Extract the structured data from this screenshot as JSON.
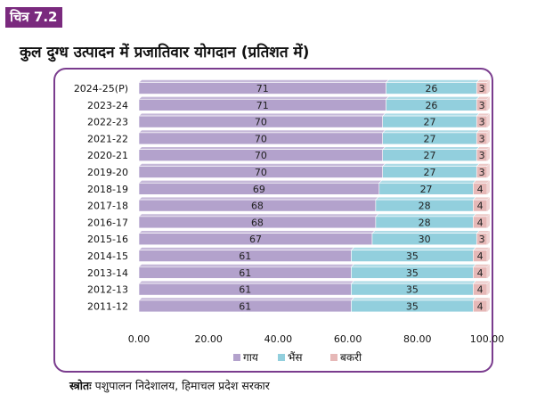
{
  "figure_label": "चित्र 7.2",
  "title": "कुल दुग्ध उत्पादन में प्रजातिवार योगदान (प्रतिशत में)",
  "source_label": "स्त्रोतः",
  "source_text": "पशुपालन निदेशालय, हिमाचल प्रदेश सरकार",
  "colors": {
    "badge": "#7a2a7e",
    "frame": "#7a3c8e",
    "cow": "#b3a2cc",
    "buffalo": "#92cfdd",
    "goat": "#e6b8b7"
  },
  "chart_data": {
    "type": "bar",
    "orientation": "horizontal",
    "stacked": true,
    "categories": [
      "2024-25(P)",
      "2023-24",
      "2022-23",
      "2021-22",
      "2020-21",
      "2019-20",
      "2018-19",
      "2017-18",
      "2016-17",
      "2015-16",
      "2014-15",
      "2013-14",
      "2012-13",
      "2011-12"
    ],
    "series": [
      {
        "name": "गाय",
        "color": "#b3a2cc",
        "values": [
          71,
          71,
          70,
          70,
          70,
          70,
          69,
          68,
          68,
          67,
          61,
          61,
          61,
          61
        ]
      },
      {
        "name": "भैंस",
        "color": "#92cfdd",
        "values": [
          26,
          26,
          27,
          27,
          27,
          27,
          27,
          28,
          28,
          30,
          35,
          35,
          35,
          35
        ]
      },
      {
        "name": "बकरी",
        "color": "#e6b8b7",
        "values": [
          3,
          3,
          3,
          3,
          3,
          3,
          4,
          4,
          4,
          3,
          4,
          4,
          4,
          4
        ]
      }
    ],
    "xlim": [
      0,
      100
    ],
    "xticks": [
      "0.00",
      "20.00",
      "40.00",
      "60.00",
      "80.00",
      "100.00"
    ],
    "data_labels": true,
    "legend_position": "bottom",
    "grid": false
  }
}
